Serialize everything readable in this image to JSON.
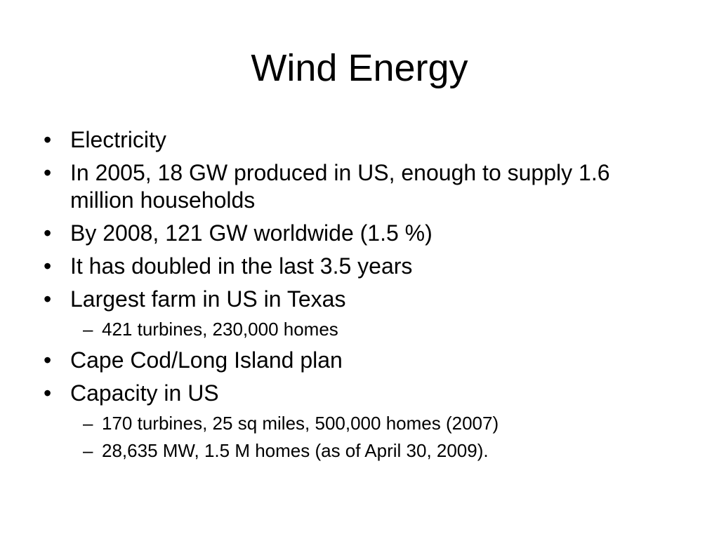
{
  "title": "Wind Energy",
  "bullets": [
    {
      "text": "Electricity"
    },
    {
      "text": "In 2005, 18 GW produced in US, enough to supply 1.6 million households"
    },
    {
      "text": "By 2008, 121 GW worldwide (1.5 %)"
    },
    {
      "text": "It has doubled in the last 3.5 years"
    },
    {
      "text": "Largest farm in US in Texas",
      "sub": [
        "421 turbines, 230,000 homes"
      ]
    },
    {
      "text": "Cape Cod/Long Island plan"
    },
    {
      "text": "Capacity in US",
      "sub": [
        "170 turbines, 25 sq miles, 500,000 homes (2007)",
        "28,635 MW, 1.5 M homes (as of April 30, 2009)."
      ]
    }
  ]
}
